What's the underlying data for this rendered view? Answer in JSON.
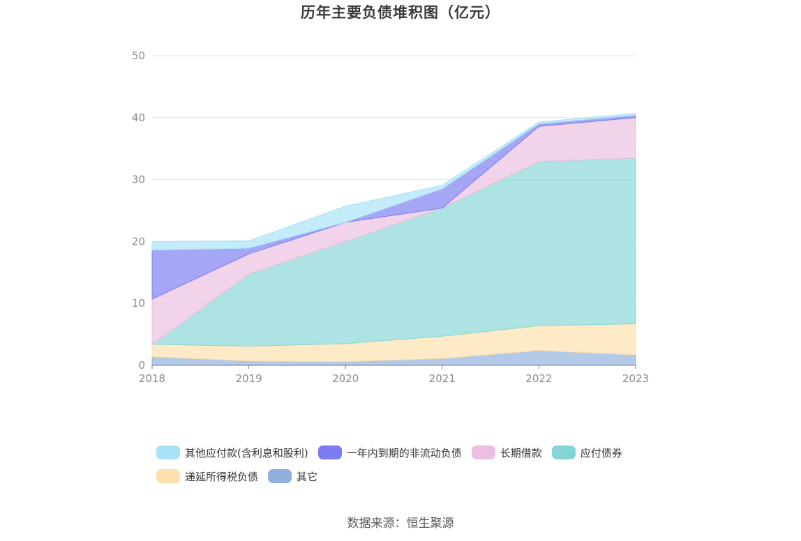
{
  "chart_data": {
    "type": "area",
    "stacked": true,
    "title": "历年主要负债堆积图（亿元）",
    "x": [
      "2018",
      "2019",
      "2020",
      "2021",
      "2022",
      "2023"
    ],
    "ylim": [
      0,
      50
    ],
    "yticks": [
      "0",
      "10",
      "20",
      "30",
      "40",
      "50"
    ],
    "grid": true,
    "legend_position": "bottom",
    "series": [
      {
        "name": "其它",
        "color": "#8fb0dc",
        "values": [
          1.4,
          0.7,
          0.6,
          1.1,
          2.4,
          1.7
        ]
      },
      {
        "name": "递延所得税负债",
        "color": "#fde0ad",
        "values": [
          2.0,
          2.4,
          2.9,
          3.6,
          4.0,
          5.0
        ]
      },
      {
        "name": "应付债券",
        "color": "#86d5d6",
        "values": [
          0.0,
          11.6,
          16.5,
          20.7,
          26.5,
          26.8
        ]
      },
      {
        "name": "长期借款",
        "color": "#eabfdf",
        "values": [
          7.3,
          3.3,
          3.1,
          0.0,
          5.7,
          6.5
        ]
      },
      {
        "name": "一年内到期的非流动负债",
        "color": "#7b7cf0",
        "values": [
          7.9,
          0.9,
          0.0,
          3.1,
          0.4,
          0.4
        ]
      },
      {
        "name": "其他应付款(含利息和股利)",
        "color": "#a8e1f8",
        "values": [
          1.4,
          1.2,
          2.6,
          0.6,
          0.3,
          0.3
        ]
      }
    ],
    "legend_order": [
      "其他应付款(含利息和股利)",
      "一年内到期的非流动负债",
      "长期借款",
      "应付债券",
      "递延所得税负债",
      "其它"
    ]
  },
  "source_text": "数据来源：恒生聚源"
}
